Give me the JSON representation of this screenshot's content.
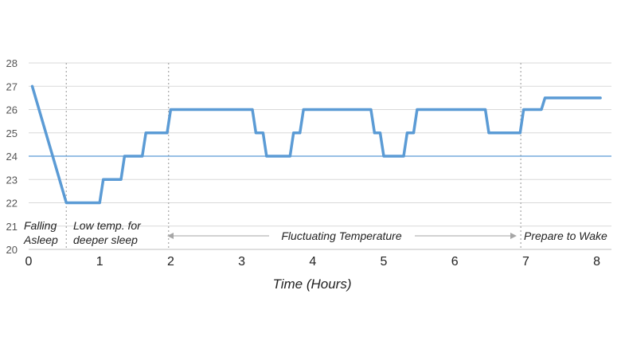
{
  "chart_data": {
    "type": "line",
    "title": "",
    "xlabel": "Time (Hours)",
    "ylabel": "",
    "xlim": [
      0,
      8.2
    ],
    "ylim": [
      20,
      28
    ],
    "x_ticks": [
      "0",
      "1",
      "2",
      "3",
      "4",
      "5",
      "6",
      "7",
      "8"
    ],
    "y_ticks": [
      "20",
      "21",
      "22",
      "23",
      "24",
      "25",
      "26",
      "27",
      "28"
    ],
    "grid": true,
    "reference_line": 24,
    "phase_dividers": [
      0.53,
      1.97,
      6.93
    ],
    "series": [
      {
        "color": "#5b9bd5",
        "x": [
          0.05,
          0.53,
          1.0,
          1.05,
          1.3,
          1.35,
          1.6,
          1.65,
          1.95,
          2.0,
          3.15,
          3.2,
          3.3,
          3.35,
          3.68,
          3.73,
          3.82,
          3.87,
          4.82,
          4.87,
          4.95,
          5.0,
          5.28,
          5.33,
          5.42,
          5.47,
          6.43,
          6.48,
          6.92,
          6.97,
          7.22,
          7.27,
          8.05
        ],
        "values": [
          27,
          22,
          22,
          23,
          23,
          24,
          24,
          25,
          25,
          26,
          26,
          25,
          25,
          24,
          24,
          25,
          25,
          26,
          26,
          25,
          25,
          24,
          24,
          25,
          25,
          26,
          26,
          25,
          25,
          26,
          26,
          26.5,
          26.5
        ]
      }
    ],
    "annotations": {
      "falling_line1": "Falling",
      "falling_line2": "Asleep",
      "low_line1": "Low temp. for",
      "low_line2": "deeper sleep",
      "fluctuating": "Fluctuating Temperature",
      "wake": "Prepare to Wake"
    },
    "colors": {
      "line": "#5b9bd5",
      "reference": "#5b9bd5",
      "grid": "#d9d9d9",
      "divider": "#a6a6a6",
      "arrow": "#a6a6a6"
    }
  }
}
